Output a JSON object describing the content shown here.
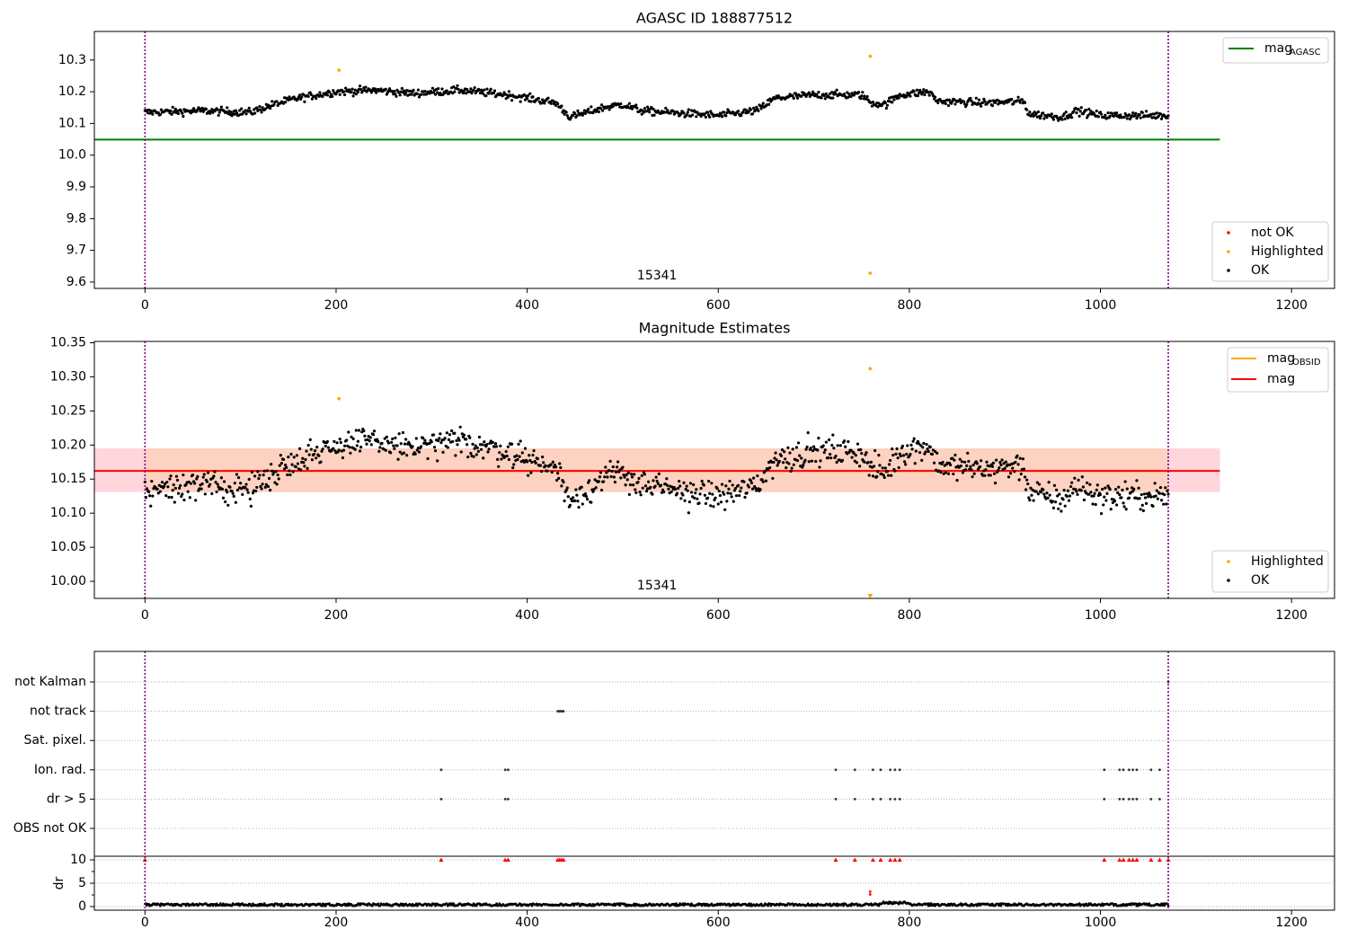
{
  "colors": {
    "ok": "#000000",
    "highlighted": "#ffa500",
    "not_ok": "#ff0000",
    "mag_agasc_line": "#008000",
    "mag_obsid_line": "#ffa500",
    "mag_line": "#ff0000",
    "band_outer": "#ffd6dc",
    "band_inner": "#fdd2c0",
    "obs_boundary": "#800080"
  },
  "chart_data": [
    {
      "type": "scatter",
      "title": "AGASC ID 188877512",
      "xlim": [
        -53,
        1245
      ],
      "ylim": [
        9.58,
        10.39
      ],
      "xticks": [
        "0",
        "200",
        "400",
        "600",
        "800",
        "1000",
        "1200"
      ],
      "yticks": [
        "9.6",
        "9.7",
        "9.8",
        "9.9",
        "10.0",
        "10.1",
        "10.2",
        "10.3"
      ],
      "obs_boundaries": [
        0,
        1071
      ],
      "obs_label": {
        "text": "15341",
        "x": 536
      },
      "hlines": [
        {
          "name": "mag_AGASC",
          "y": 10.049,
          "x": [
            -53,
            1125
          ]
        }
      ],
      "legend_lines": [
        {
          "main": "mag",
          "sub": "AGASC",
          "color_key": "mag_agasc_line"
        }
      ],
      "legend_points": [
        {
          "label": "not OK",
          "color_key": "not_ok"
        },
        {
          "label": "Highlighted",
          "color_key": "highlighted"
        },
        {
          "label": "OK",
          "color_key": "ok"
        }
      ],
      "highlighted_points": [
        [
          203,
          10.268
        ],
        [
          759,
          10.312
        ],
        [
          759,
          9.628
        ]
      ],
      "ok_series": {
        "x_range": [
          0,
          1071
        ],
        "n": 1072,
        "segments": [
          [
            0,
            10.135
          ],
          [
            60,
            10.14
          ],
          [
            110,
            10.135
          ],
          [
            135,
            10.16
          ],
          [
            160,
            10.18
          ],
          [
            200,
            10.2
          ],
          [
            240,
            10.205
          ],
          [
            280,
            10.195
          ],
          [
            330,
            10.205
          ],
          [
            380,
            10.19
          ],
          [
            430,
            10.165
          ],
          [
            445,
            10.12
          ],
          [
            480,
            10.15
          ],
          [
            500,
            10.16
          ],
          [
            520,
            10.14
          ],
          [
            600,
            10.125
          ],
          [
            640,
            10.14
          ],
          [
            660,
            10.18
          ],
          [
            700,
            10.19
          ],
          [
            750,
            10.19
          ],
          [
            760,
            10.165
          ],
          [
            775,
            10.16
          ],
          [
            790,
            10.19
          ],
          [
            820,
            10.2
          ],
          [
            830,
            10.17
          ],
          [
            880,
            10.165
          ],
          [
            920,
            10.17
          ],
          [
            925,
            10.13
          ],
          [
            960,
            10.12
          ],
          [
            975,
            10.14
          ],
          [
            1000,
            10.125
          ],
          [
            1071,
            10.125
          ]
        ],
        "noise": 0.012
      }
    },
    {
      "type": "scatter",
      "title": "Magnitude Estimates",
      "xlim": [
        -53,
        1245
      ],
      "ylim": [
        9.975,
        10.352
      ],
      "xticks": [
        "0",
        "200",
        "400",
        "600",
        "800",
        "1000",
        "1200"
      ],
      "yticks": [
        "10.00",
        "10.05",
        "10.10",
        "10.15",
        "10.20",
        "10.25",
        "10.30",
        "10.35"
      ],
      "obs_boundaries": [
        0,
        1071
      ],
      "obs_label": {
        "text": "15341",
        "x": 536
      },
      "mag_mean": 10.162,
      "band_outer": [
        10.131,
        10.195
      ],
      "band_inner": [
        10.131,
        10.195
      ],
      "band_inner_x": [
        0,
        1071
      ],
      "band_x": [
        -53,
        1125
      ],
      "legend_lines": [
        {
          "main": "mag",
          "sub": "OBSID",
          "color_key": "mag_obsid_line"
        },
        {
          "main": "mag",
          "sub": "",
          "color_key": "mag_line"
        }
      ],
      "legend_points": [
        {
          "label": "Highlighted",
          "color_key": "highlighted"
        },
        {
          "label": "OK",
          "color_key": "ok"
        }
      ],
      "highlighted_points": [
        [
          203,
          10.268
        ],
        [
          759,
          10.312
        ]
      ],
      "clipped_marker": {
        "x": 759,
        "direction": "down"
      },
      "ok_series": {
        "x_range": [
          0,
          1071
        ],
        "n": 1072,
        "segments": [
          [
            0,
            10.135
          ],
          [
            60,
            10.14
          ],
          [
            110,
            10.135
          ],
          [
            135,
            10.16
          ],
          [
            160,
            10.18
          ],
          [
            200,
            10.2
          ],
          [
            240,
            10.205
          ],
          [
            280,
            10.195
          ],
          [
            330,
            10.205
          ],
          [
            380,
            10.19
          ],
          [
            430,
            10.165
          ],
          [
            445,
            10.12
          ],
          [
            480,
            10.15
          ],
          [
            500,
            10.16
          ],
          [
            520,
            10.14
          ],
          [
            600,
            10.125
          ],
          [
            640,
            10.14
          ],
          [
            660,
            10.18
          ],
          [
            700,
            10.19
          ],
          [
            750,
            10.19
          ],
          [
            760,
            10.165
          ],
          [
            775,
            10.16
          ],
          [
            790,
            10.19
          ],
          [
            820,
            10.2
          ],
          [
            830,
            10.17
          ],
          [
            880,
            10.165
          ],
          [
            920,
            10.17
          ],
          [
            925,
            10.13
          ],
          [
            960,
            10.12
          ],
          [
            975,
            10.14
          ],
          [
            1000,
            10.125
          ],
          [
            1071,
            10.125
          ]
        ],
        "noise": 0.02
      }
    },
    {
      "type": "scatter",
      "title": "",
      "xlim": [
        -53,
        1245
      ],
      "xticks": [
        "0",
        "200",
        "400",
        "600",
        "800",
        "1000",
        "1200"
      ],
      "obs_boundaries": [
        0,
        1071
      ],
      "flag_rows": [
        {
          "label": "not Kalman",
          "xs": [
            1071
          ]
        },
        {
          "label": "not track",
          "xs": [
            432,
            433,
            434,
            435,
            436,
            437,
            438
          ]
        },
        {
          "label": "Sat. pixel.",
          "xs": []
        },
        {
          "label": "Ion. rad.",
          "xs": [
            310,
            377,
            380,
            723,
            743,
            762,
            770,
            780,
            785,
            790,
            1004,
            1020,
            1024,
            1030,
            1034,
            1038,
            1053,
            1062
          ]
        },
        {
          "label": "dr > 5",
          "xs": [
            310,
            377,
            380,
            723,
            743,
            762,
            770,
            780,
            785,
            790,
            1004,
            1020,
            1024,
            1030,
            1034,
            1038,
            1053,
            1062
          ]
        },
        {
          "label": "OBS not OK",
          "xs": []
        }
      ],
      "dr": {
        "ylabel": "dr",
        "ylim": [
          -0.5,
          10.5
        ],
        "yticks": [
          "0",
          "5",
          "10"
        ],
        "clipped_value": 10,
        "clipped_xs": [
          0,
          310,
          377,
          380,
          432,
          434,
          436,
          438,
          723,
          743,
          762,
          770,
          780,
          785,
          790,
          1004,
          1020,
          1024,
          1030,
          1034,
          1038,
          1053,
          1062,
          1071
        ],
        "highlighted_points": [
          [
            759,
            3.2
          ],
          [
            759,
            2.6
          ]
        ],
        "baseline": 0.4
      }
    }
  ]
}
